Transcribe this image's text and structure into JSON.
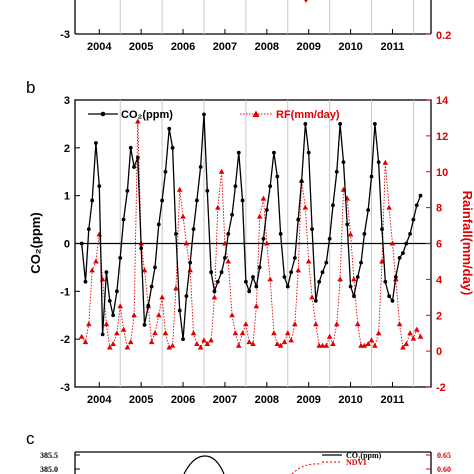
{
  "panels": {
    "a": {
      "x_tick_labels": [
        "2004",
        "2005",
        "2006",
        "2007",
        "2008",
        "2009",
        "2010",
        "2011"
      ],
      "left_y_bottom_label": "-3",
      "right_y_bottom_label": "0.2"
    },
    "b": {
      "label": "b",
      "legend": {
        "co2": "CO₂(ppm)",
        "rf": "RF(mm/day)"
      },
      "left_axis_title": "CO₂(ppm)",
      "right_axis_title": "Rainfall(mm/day)"
    },
    "c": {
      "label": "c",
      "left_y_tick_labels": [
        "385.5",
        "385.0"
      ],
      "right_y_tick_labels": [
        "0.65",
        "0.60"
      ],
      "legend": {
        "co2": "CO₂(ppm)",
        "ndvi": "NDVI"
      }
    }
  },
  "colors": {
    "co2": "#000000",
    "rf": "#e00000",
    "ndvi": "#e00000"
  },
  "chart_data": {
    "type": "line",
    "title": "",
    "x": [
      2003.58,
      2003.67,
      2003.75,
      2003.83,
      2003.92,
      2004.0,
      2004.08,
      2004.17,
      2004.25,
      2004.33,
      2004.42,
      2004.5,
      2004.58,
      2004.67,
      2004.75,
      2004.83,
      2004.92,
      2005.0,
      2005.08,
      2005.17,
      2005.25,
      2005.33,
      2005.42,
      2005.5,
      2005.58,
      2005.67,
      2005.75,
      2005.83,
      2005.92,
      2006.0,
      2006.08,
      2006.17,
      2006.25,
      2006.33,
      2006.42,
      2006.5,
      2006.58,
      2006.67,
      2006.75,
      2006.83,
      2006.92,
      2007.0,
      2007.08,
      2007.17,
      2007.25,
      2007.33,
      2007.42,
      2007.5,
      2007.58,
      2007.67,
      2007.75,
      2007.83,
      2007.92,
      2008.0,
      2008.08,
      2008.17,
      2008.25,
      2008.33,
      2008.42,
      2008.5,
      2008.58,
      2008.67,
      2008.75,
      2008.83,
      2008.92,
      2009.0,
      2009.08,
      2009.17,
      2009.25,
      2009.33,
      2009.42,
      2009.5,
      2009.58,
      2009.67,
      2009.75,
      2009.83,
      2009.92,
      2010.0,
      2010.08,
      2010.17,
      2010.25,
      2010.33,
      2010.42,
      2010.5,
      2010.58,
      2010.67,
      2010.75,
      2010.83,
      2010.92,
      2011.0,
      2011.08,
      2011.17,
      2011.25,
      2011.33,
      2011.42,
      2011.5,
      2011.58,
      2011.67
    ],
    "series": [
      {
        "name": "CO₂(ppm)",
        "axis": "left",
        "values": [
          0.0,
          -0.8,
          0.3,
          0.9,
          2.1,
          1.2,
          -1.9,
          -0.6,
          -1.2,
          -1.5,
          -1.0,
          -0.3,
          0.5,
          1.1,
          2.0,
          1.6,
          1.8,
          -0.1,
          -1.7,
          -1.3,
          -0.9,
          -0.5,
          0.4,
          0.9,
          1.5,
          2.4,
          2.0,
          0.2,
          -1.4,
          -2.0,
          -1.1,
          -0.4,
          0.3,
          0.9,
          1.6,
          2.7,
          1.1,
          -0.6,
          -1.0,
          -0.8,
          -0.6,
          -0.3,
          0.2,
          0.6,
          1.2,
          1.9,
          0.9,
          -0.8,
          -1.0,
          -0.7,
          -0.9,
          -0.5,
          0.1,
          0.7,
          1.2,
          1.9,
          1.4,
          0.2,
          -0.7,
          -0.9,
          -0.6,
          -0.3,
          0.5,
          1.3,
          2.5,
          1.9,
          0.3,
          -1.2,
          -0.8,
          -0.6,
          -0.4,
          0.1,
          0.8,
          1.5,
          2.5,
          1.7,
          0.4,
          -0.9,
          -1.1,
          -0.7,
          -0.4,
          0.2,
          0.7,
          1.4,
          2.5,
          1.7,
          0.3,
          -0.8,
          -1.1,
          -1.2,
          -0.7,
          -0.3,
          -0.2,
          0.0,
          0.2,
          0.5,
          0.8,
          1.0
        ]
      },
      {
        "name": "RF(mm/day)",
        "axis": "right",
        "values": [
          0.8,
          0.5,
          1.5,
          4.5,
          5.0,
          6.5,
          4.0,
          1.5,
          0.2,
          0.4,
          1.0,
          2.5,
          1.2,
          0.2,
          0.5,
          2.0,
          12.8,
          6.0,
          4.5,
          2.5,
          0.5,
          1.0,
          2.0,
          3.0,
          1.0,
          0.2,
          0.3,
          3.5,
          9.0,
          7.5,
          6.0,
          4.5,
          1.0,
          0.4,
          0.2,
          0.6,
          0.4,
          0.6,
          3.0,
          8.0,
          10.0,
          6.0,
          5.0,
          2.0,
          1.0,
          0.3,
          1.0,
          1.5,
          0.5,
          0.4,
          2.5,
          7.5,
          8.5,
          6.0,
          4.0,
          1.0,
          0.4,
          0.3,
          0.5,
          1.0,
          0.6,
          1.5,
          4.5,
          9.5,
          8.0,
          5.0,
          3.0,
          1.5,
          0.3,
          0.3,
          0.3,
          0.8,
          0.4,
          1.5,
          4.0,
          9.0,
          8.5,
          6.5,
          4.0,
          1.5,
          0.3,
          0.3,
          0.4,
          0.6,
          0.3,
          1.0,
          5.0,
          10.5,
          8.0,
          6.0,
          4.0,
          1.5,
          0.2,
          0.4,
          1.0,
          0.7,
          1.2,
          0.8
        ]
      }
    ],
    "xlabel": "",
    "ylabel": "CO₂(ppm)",
    "y2label": "Rainfall(mm/day)",
    "xlim": [
      2003.42,
      2011.92
    ],
    "ylim": [
      -3,
      3
    ],
    "y2lim": [
      -2,
      14
    ],
    "x_ticks": [
      2004,
      2005,
      2006,
      2007,
      2008,
      2009,
      2010,
      2011
    ],
    "x_tick_labels": [
      "2004",
      "2005",
      "2006",
      "2007",
      "2008",
      "2009",
      "2010",
      "2011"
    ],
    "y_ticks": [
      -3,
      -2,
      -1,
      0,
      1,
      2,
      3
    ],
    "y_tick_labels": [
      "-3",
      "-2",
      "-1",
      "0",
      "1",
      "2",
      "3"
    ],
    "y2_ticks": [
      -2,
      0,
      2,
      4,
      6,
      8,
      10,
      12,
      14
    ],
    "y2_tick_labels": [
      "-2",
      "0",
      "2",
      "4",
      "6",
      "8",
      "10",
      "12",
      "14"
    ],
    "zero_line": 0,
    "grid": "vertical year lines",
    "legend_position": "top"
  }
}
